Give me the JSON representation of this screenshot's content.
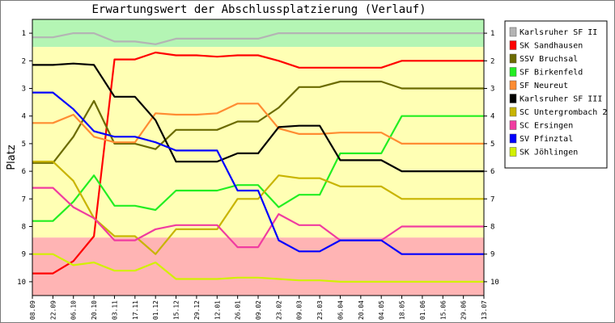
{
  "chart_data": {
    "type": "line",
    "title": "Erwartungswert der Abschlussplatzierung (Verlauf)",
    "ylabel": "Platz",
    "xlabel": "",
    "ylim": [
      10.5,
      0.5
    ],
    "y_ticks": [
      "1",
      "2",
      "3",
      "4",
      "5",
      "6",
      "7",
      "8",
      "9",
      "10"
    ],
    "x": [
      "08.09",
      "22.09",
      "06.10",
      "20.10",
      "03.11",
      "17.11",
      "01.12",
      "15.12",
      "29.12",
      "12.01",
      "26.01",
      "09.02",
      "23.02",
      "09.03",
      "23.03",
      "06.04",
      "20.04",
      "04.05",
      "18.05",
      "01.06",
      "15.06",
      "29.06",
      "13.07"
    ],
    "legend_position": "right",
    "bands": [
      {
        "from": 0.5,
        "to": 1.5,
        "color": "#b4f5b4"
      },
      {
        "from": 1.5,
        "to": 8.4,
        "color": "#ffffb4"
      },
      {
        "from": 8.4,
        "to": 10.5,
        "color": "#ffb4b4"
      }
    ],
    "series": [
      {
        "name": "Karlsruher SF II",
        "color": "#b4b4b4",
        "values": [
          1.15,
          1.15,
          1.0,
          1.0,
          1.3,
          1.3,
          1.4,
          1.2,
          1.2,
          1.2,
          1.2,
          1.2,
          1.0,
          1.0,
          1.0,
          1.0,
          1.0,
          1.0,
          1.0,
          1.0,
          1.0,
          1.0,
          1.0
        ]
      },
      {
        "name": "SK Sandhausen",
        "color": "#ff0000",
        "values": [
          9.7,
          9.7,
          9.25,
          8.35,
          1.95,
          1.95,
          1.7,
          1.8,
          1.8,
          1.85,
          1.8,
          1.8,
          2.0,
          2.25,
          2.25,
          2.25,
          2.25,
          2.25,
          2.0,
          2.0,
          2.0,
          2.0,
          2.0
        ]
      },
      {
        "name": "SSV Bruchsal",
        "color": "#6b6b00",
        "values": [
          5.7,
          5.7,
          4.75,
          3.45,
          5.0,
          5.0,
          5.2,
          4.5,
          4.5,
          4.5,
          4.2,
          4.2,
          3.7,
          2.95,
          2.95,
          2.75,
          2.75,
          2.75,
          3.0,
          3.0,
          3.0,
          3.0,
          3.0
        ]
      },
      {
        "name": "SF Birkenfeld",
        "color": "#22ee22",
        "values": [
          7.8,
          7.8,
          7.1,
          6.15,
          7.25,
          7.25,
          7.4,
          6.7,
          6.7,
          6.7,
          6.5,
          6.5,
          7.3,
          6.85,
          6.85,
          5.35,
          5.35,
          5.35,
          4.0,
          4.0,
          4.0,
          4.0,
          4.0
        ]
      },
      {
        "name": "SF Neureut",
        "color": "#ff8c32",
        "values": [
          4.25,
          4.25,
          3.95,
          4.75,
          4.95,
          4.95,
          3.9,
          3.95,
          3.95,
          3.9,
          3.55,
          3.55,
          4.45,
          4.65,
          4.65,
          4.6,
          4.6,
          4.6,
          5.0,
          5.0,
          5.0,
          5.0,
          5.0
        ]
      },
      {
        "name": "Karlsruher SF III",
        "color": "#000000",
        "values": [
          2.15,
          2.15,
          2.1,
          2.15,
          3.3,
          3.3,
          4.15,
          5.65,
          5.65,
          5.65,
          5.35,
          5.35,
          4.4,
          4.35,
          4.35,
          5.6,
          5.6,
          5.6,
          6.0,
          6.0,
          6.0,
          6.0,
          6.0
        ]
      },
      {
        "name": "SC Untergrombach 2",
        "color": "#c8b400",
        "values": [
          5.65,
          5.65,
          6.35,
          7.7,
          8.35,
          8.35,
          9.0,
          8.1,
          8.1,
          8.1,
          7.0,
          7.0,
          6.15,
          6.25,
          6.25,
          6.55,
          6.55,
          6.55,
          7.0,
          7.0,
          7.0,
          7.0,
          7.0
        ]
      },
      {
        "name": "SC Ersingen",
        "color": "#f03ca0",
        "values": [
          6.6,
          6.6,
          7.3,
          7.7,
          8.5,
          8.5,
          8.1,
          7.95,
          7.95,
          7.95,
          8.75,
          8.75,
          7.55,
          7.95,
          7.95,
          8.5,
          8.5,
          8.5,
          8.0,
          8.0,
          8.0,
          8.0,
          8.0
        ]
      },
      {
        "name": "SV Pfinztal",
        "color": "#0000ff",
        "values": [
          3.15,
          3.15,
          3.75,
          4.55,
          4.75,
          4.75,
          4.95,
          5.25,
          5.25,
          5.25,
          6.7,
          6.7,
          8.5,
          8.9,
          8.9,
          8.5,
          8.5,
          8.5,
          9.0,
          9.0,
          9.0,
          9.0,
          9.0
        ]
      },
      {
        "name": "SK Jöhlingen",
        "color": "#d2f000",
        "values": [
          9.0,
          9.0,
          9.4,
          9.3,
          9.6,
          9.6,
          9.3,
          9.9,
          9.9,
          9.9,
          9.85,
          9.85,
          9.9,
          9.95,
          9.95,
          10.0,
          10.0,
          10.0,
          10.0,
          10.0,
          10.0,
          10.0,
          10.0
        ]
      }
    ]
  }
}
